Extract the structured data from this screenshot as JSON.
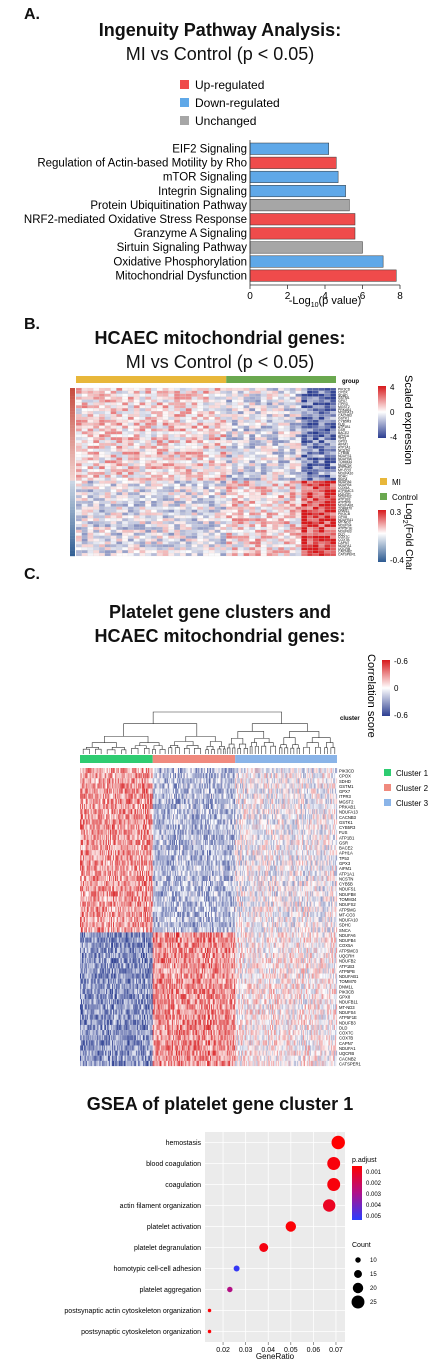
{
  "panelA": {
    "letter": "A.",
    "title_line1": "Ingenuity Pathway Analysis:",
    "title_line2": "MI vs Control (p < 0.05)",
    "legend": [
      {
        "label": "Up-regulated",
        "color": "#ef4b4b"
      },
      {
        "label": "Down-regulated",
        "color": "#5fa8e8"
      },
      {
        "label": "Unchanged",
        "color": "#a6a6a6"
      }
    ]
  },
  "panelB": {
    "letter": "B.",
    "title_line1": "HCAEC mitochondrial genes:",
    "title_line2": "MI vs Control (p < 0.05)",
    "group_header": "group",
    "scaled_title": "Scaled expression",
    "scaled_ticks": [
      "4",
      "0",
      "-4"
    ],
    "group_legend": [
      {
        "label": "MI",
        "color": "#e8b73a"
      },
      {
        "label": "Control",
        "color": "#6aa84f"
      }
    ],
    "fc_title_main": "Log",
    "fc_title_sub": "2",
    "fc_title_rest": "(Fold Change)",
    "fc_ticks": [
      "0.3",
      "-0.4"
    ],
    "colors": {
      "high": "#d7191c",
      "mid": "#ffffff",
      "low": "#2c3e91"
    }
  },
  "panelC": {
    "letter": "C.",
    "title_line1": "Platelet gene clusters and",
    "title_line2": "HCAEC mitochondrial genes:",
    "cluster_header": "cluster",
    "corr_title": "Correlation score",
    "corr_ticks": [
      "-0.6",
      "0",
      "-0.6"
    ],
    "cluster_legend": [
      {
        "label": "Cluster 1",
        "color": "#2ecc71"
      },
      {
        "label": "Cluster 2",
        "color": "#f08a7e"
      },
      {
        "label": "Cluster 3",
        "color": "#8ab4e8"
      }
    ]
  },
  "genes": [
    "PIK3CD",
    "CPOX",
    "SDHD",
    "GSTM1",
    "GPX7",
    "ITPR3",
    "MGST2",
    "PRKAB1",
    "NDUFA13",
    "CACNB3",
    "GSTK1",
    "CYB5R3",
    "FUS",
    "ATP1B1",
    "GSR",
    "BACE2",
    "APH1A",
    "TP53",
    "GPX3",
    "AIFM1",
    "ATP1A1",
    "NCSTN",
    "CYB5B",
    "NDUFS1",
    "NDUFB8",
    "TOMM34",
    "NDUFS2",
    "ATP5MG",
    "MT-CO3",
    "NDUFA10",
    "SDHC",
    "SNCA",
    "NDUFA6",
    "NDUFB4",
    "COX5A",
    "ATP5MC3",
    "UQCRH",
    "NDUFB2",
    "ATP1B3",
    "ATP5PB",
    "NDUFAB1",
    "TOMM70",
    "DNM1L",
    "PIK3CB",
    "GPX8",
    "NDUFB11",
    "MT-ND3",
    "NDUFS4",
    "ATP5F1E",
    "NDUFB3",
    "DLD",
    "COX7C",
    "COX7B",
    "CAPN7",
    "NDUFA1",
    "UQCRB",
    "CACNB2",
    "CATSPER1"
  ],
  "chart_data": [
    {
      "type": "bar",
      "orientation": "horizontal",
      "categories": [
        "EIF2 Signaling",
        "Regulation of Actin-based Motility by Rho",
        "mTOR Signaling",
        "Integrin Signaling",
        "Protein Ubiquitination Pathway",
        "NRF2-mediated Oxidative Stress Response",
        "Granzyme A Signaling",
        "Sirtuin Signaling Pathway",
        "Oxidative Phosphorylation",
        "Mitochondrial Dysfunction"
      ],
      "values": [
        4.2,
        4.6,
        4.7,
        5.1,
        5.3,
        5.6,
        5.6,
        6.0,
        7.1,
        7.8
      ],
      "status": [
        "down",
        "up",
        "down",
        "down",
        "unchanged",
        "up",
        "up",
        "unchanged",
        "down",
        "up"
      ],
      "xlabel_main": "-Log",
      "xlabel_sub": "10",
      "xlabel_rest": "(p value)",
      "xlim": [
        0,
        8
      ],
      "xticks": [
        "0",
        "2",
        "4",
        "6",
        "8"
      ]
    },
    {
      "type": "heatmap",
      "columns": {
        "MI": 26,
        "Control": 19
      },
      "rows": 58
    },
    {
      "type": "heatmap",
      "columns": {
        "Cluster 1": 75,
        "Cluster 2": 85,
        "Cluster 3": 105
      },
      "rows": 58
    },
    {
      "type": "scatter",
      "title": "GSEA of platelet gene cluster 1",
      "categories": [
        "hemostasis",
        "blood coagulation",
        "coagulation",
        "actin filament organization",
        "platelet activation",
        "platelet degranulation",
        "homotypic cell-cell adhesion",
        "platelet aggregation",
        "postsynaptic actin cytoskeleton organization",
        "postsynaptic cytoskeleton organization"
      ],
      "gene_ratio": [
        0.071,
        0.069,
        0.069,
        0.067,
        0.05,
        0.038,
        0.026,
        0.023,
        0.014,
        0.014
      ],
      "p_adjust": [
        0.0002,
        0.0004,
        0.0004,
        0.0008,
        0.0003,
        0.0005,
        0.0048,
        0.0025,
        0.0003,
        0.0003
      ],
      "count": [
        26,
        25,
        25,
        24,
        20,
        17,
        11,
        10,
        6,
        6
      ],
      "xlabel": "GeneRatio",
      "xticks": [
        "0.02",
        "0.03",
        "0.04",
        "0.05",
        "0.06",
        "0.07"
      ],
      "xlim": [
        0.012,
        0.074
      ],
      "color_legend_title": "p.adjust",
      "color_ticks": [
        "0.001",
        "0.002",
        "0.003",
        "0.004",
        "0.005"
      ],
      "size_legend_title": "Count",
      "size_ticks": [
        "10",
        "15",
        "20",
        "25"
      ]
    }
  ]
}
